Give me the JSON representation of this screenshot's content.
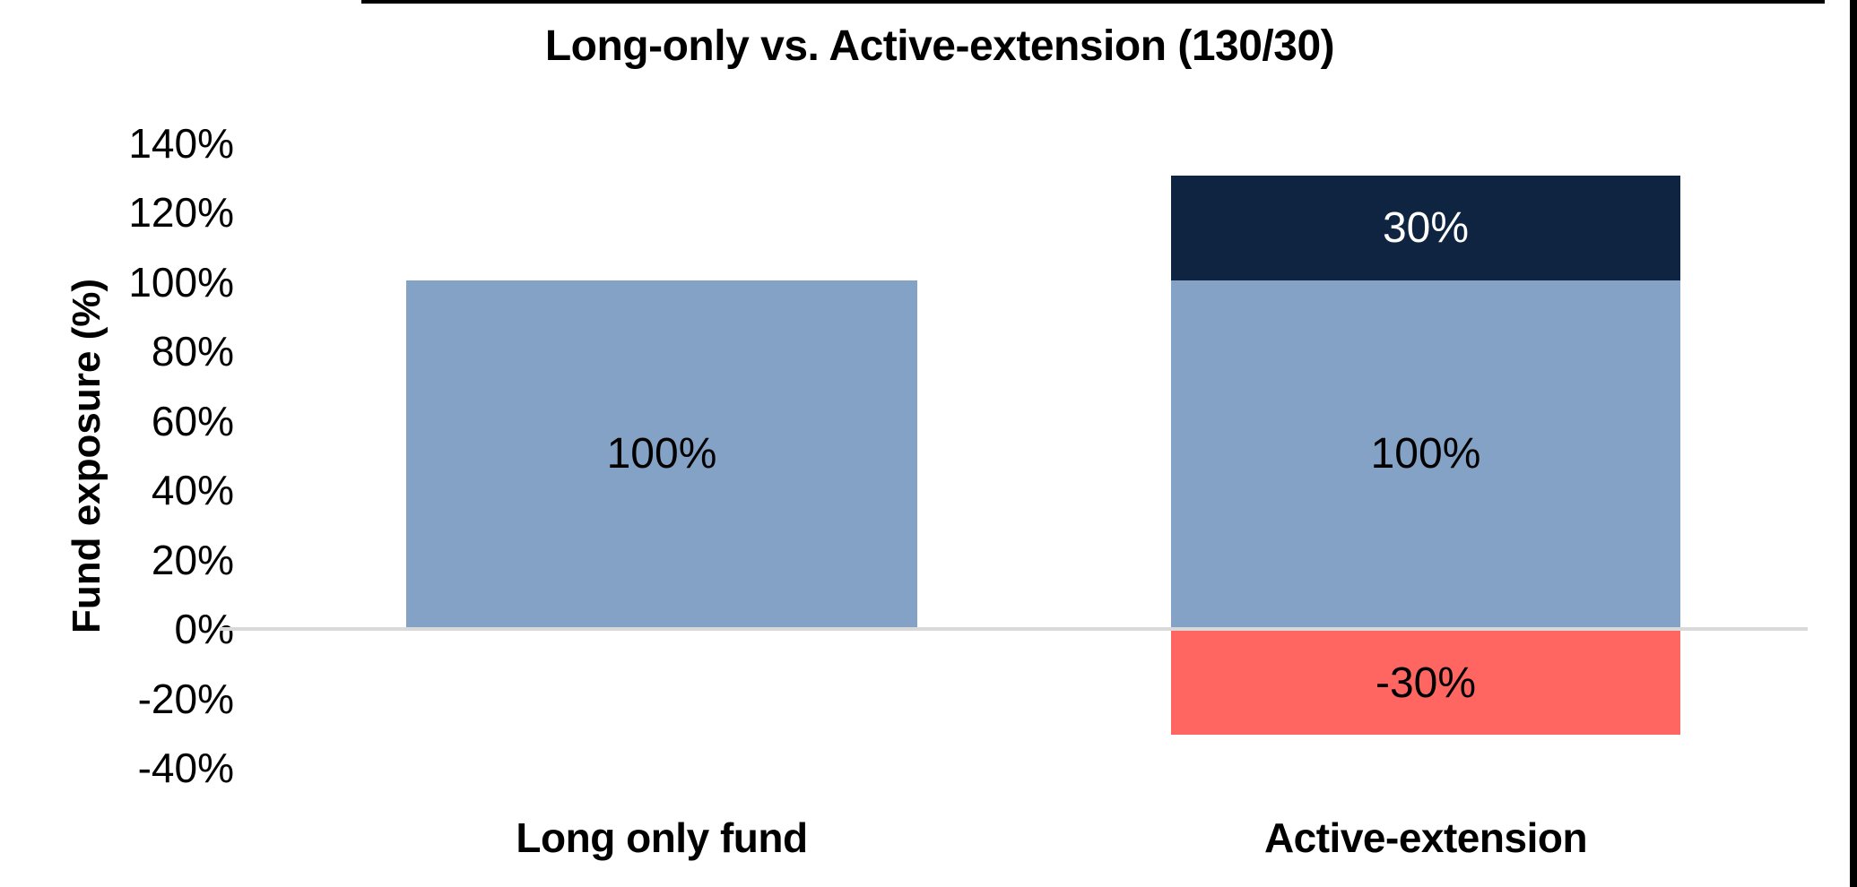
{
  "page": {
    "background": "#FFFFFF"
  },
  "chart_data": {
    "type": "bar",
    "stacked": true,
    "title": "Long-only vs. Active-extension (130/30)",
    "xlabel": "",
    "ylabel": "Fund exposure (%)",
    "ylim": [
      -40,
      140
    ],
    "ytick_step": 20,
    "grid": "zero-line-only",
    "legend": "none",
    "yticks": [
      {
        "label": "140%",
        "value": 140
      },
      {
        "label": "120%",
        "value": 120
      },
      {
        "label": "100%",
        "value": 100
      },
      {
        "label": "80%",
        "value": 80
      },
      {
        "label": "60%",
        "value": 60
      },
      {
        "label": "40%",
        "value": 40
      },
      {
        "label": "20%",
        "value": 20
      },
      {
        "label": "0%",
        "value": 0
      },
      {
        "label": "-20%",
        "value": -20
      },
      {
        "label": "-40%",
        "value": -40
      }
    ],
    "categories": [
      "Long only fund",
      "Active-extension"
    ],
    "series": [
      {
        "name": "long-exposure",
        "color": "#83A2C6",
        "label_color": "#000000",
        "values": [
          100,
          100
        ],
        "labels": [
          "100%",
          "100%"
        ]
      },
      {
        "name": "extension-overweight",
        "color": "#0F2440",
        "label_color": "#FFFFFF",
        "values": [
          null,
          30
        ],
        "labels": [
          null,
          "30%"
        ]
      },
      {
        "name": "short-exposure",
        "color": "#FF6662",
        "label_color": "#000000",
        "values": [
          null,
          -30
        ],
        "labels": [
          null,
          "-30%"
        ]
      }
    ]
  },
  "colors": {
    "background": "#FFFFFF",
    "zero_line": "#D9D9D9",
    "long_blue": "#83A2C6",
    "extension_navy": "#0F2440",
    "short_red": "#FF6662",
    "text": "#000000",
    "edge_artifact": "#000000"
  }
}
